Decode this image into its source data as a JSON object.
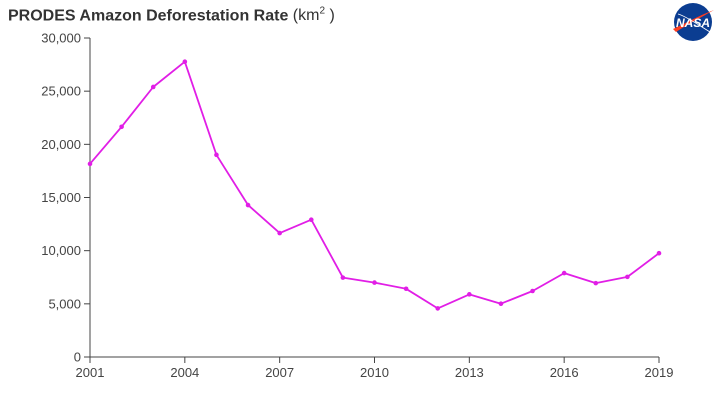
{
  "header": {
    "title": "PRODES Amazon Deforestation Rate",
    "unit_prefix": "(km",
    "unit_sup": "2",
    "unit_suffix": " )"
  },
  "logo": {
    "text": "NASA",
    "icon": "nasa-meatball-icon",
    "colors": {
      "blue": "#0b3d91",
      "red": "#fc3d21"
    }
  },
  "chart_data": {
    "type": "line",
    "title": "PRODES Amazon Deforestation Rate (km2)",
    "xlabel": "",
    "ylabel": "",
    "x": [
      2001,
      2002,
      2003,
      2004,
      2005,
      2006,
      2007,
      2008,
      2009,
      2010,
      2011,
      2012,
      2013,
      2014,
      2015,
      2016,
      2017,
      2018,
      2019
    ],
    "values": [
      18165,
      21650,
      25396,
      27772,
      19014,
      14286,
      11651,
      12911,
      7464,
      7000,
      6418,
      4571,
      5891,
      5012,
      6207,
      7893,
      6947,
      7536,
      9762
    ],
    "xlim": [
      2001,
      2019
    ],
    "ylim": [
      0,
      30000
    ],
    "xticks": [
      "2001",
      "2004",
      "2007",
      "2010",
      "2013",
      "2016",
      "2019"
    ],
    "xtick_values": [
      2001,
      2004,
      2007,
      2010,
      2013,
      2016,
      2019
    ],
    "yticks": [
      "0",
      "5,000",
      "10,000",
      "15,000",
      "20,000",
      "25,000",
      "30,000"
    ],
    "ytick_values": [
      0,
      5000,
      10000,
      15000,
      20000,
      25000,
      30000
    ],
    "grid": false,
    "line_color": "#e11ee6",
    "axis_color": "#444444"
  }
}
